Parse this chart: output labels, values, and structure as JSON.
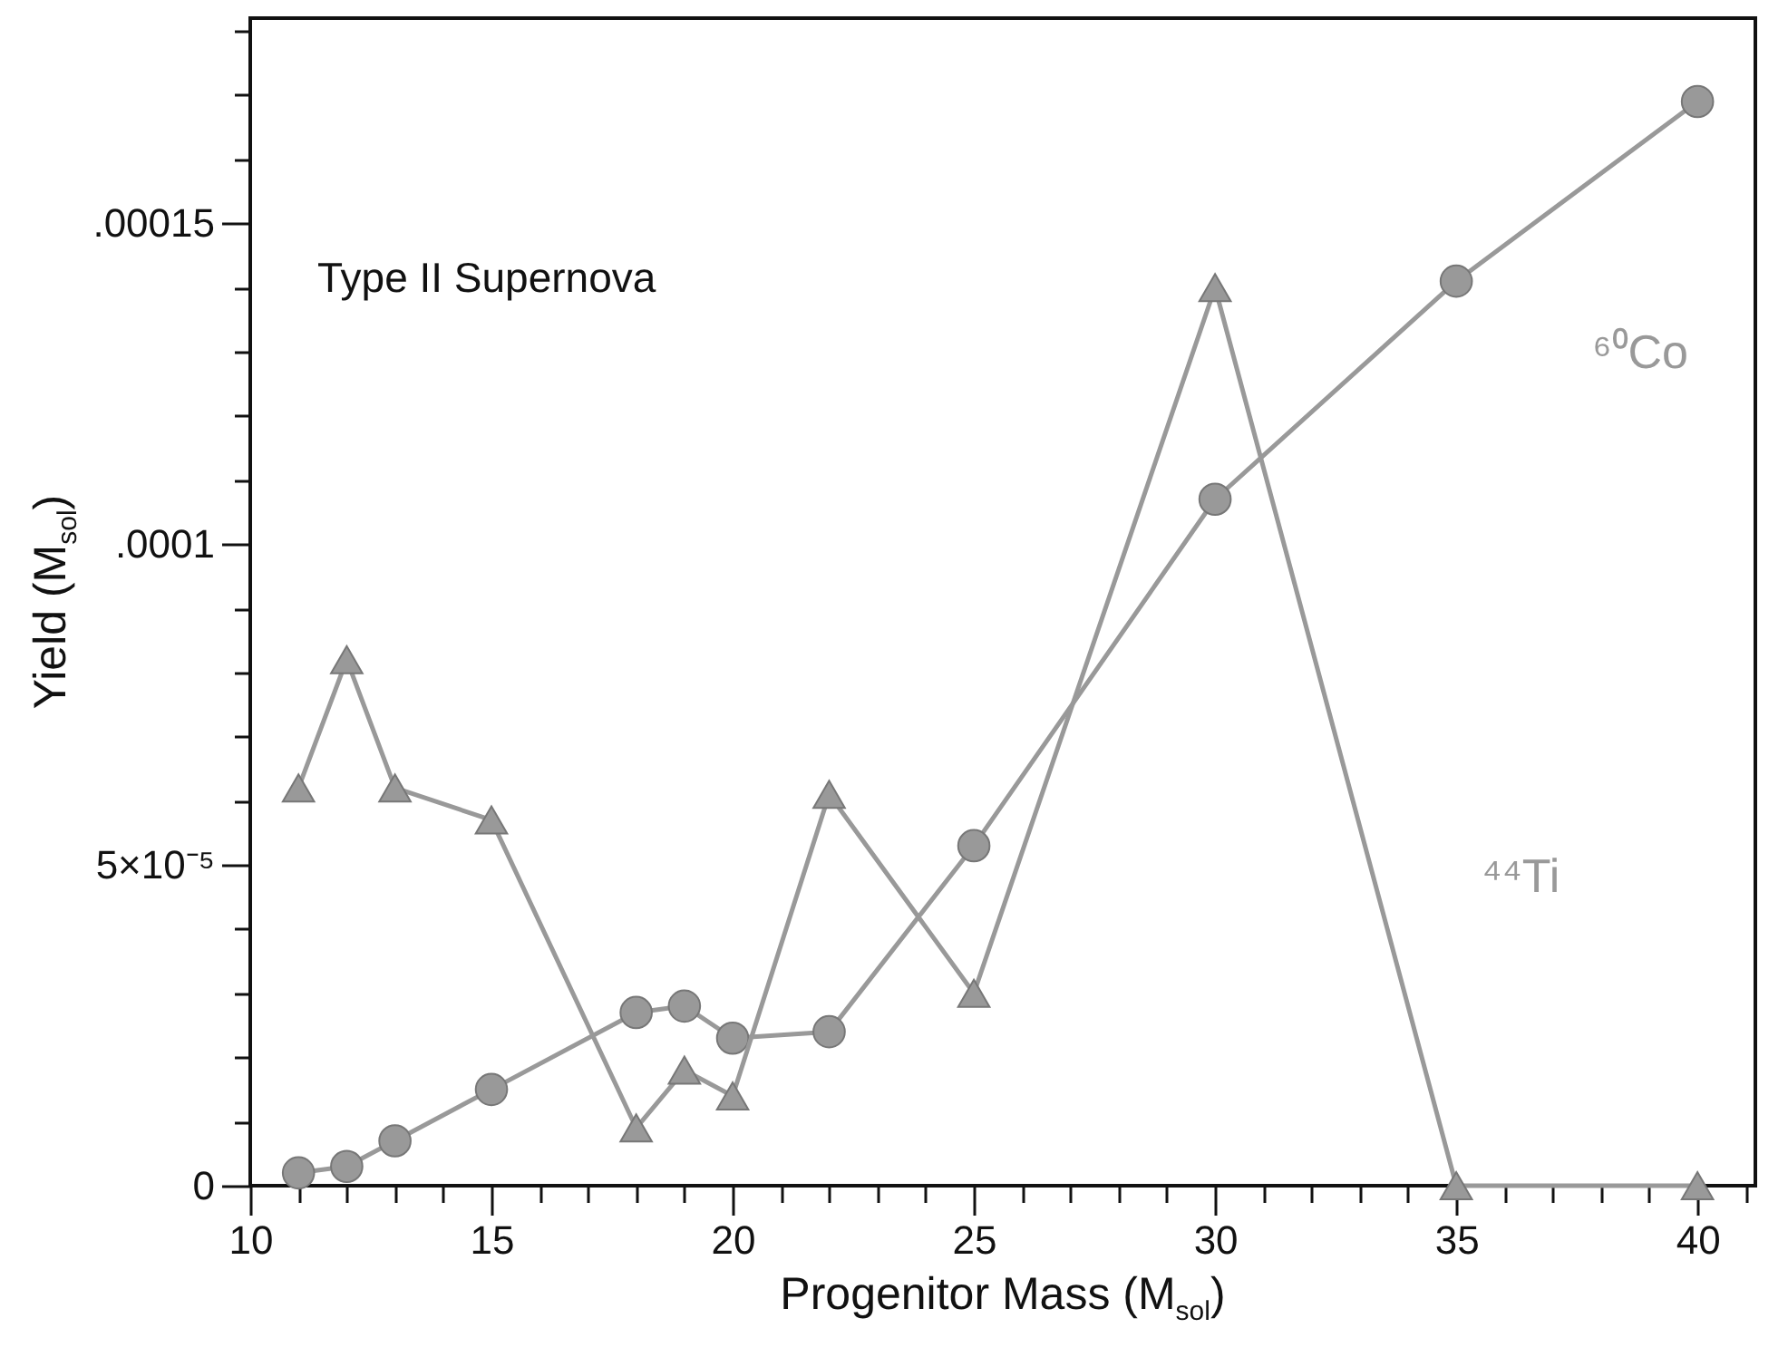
{
  "chart_data": {
    "type": "line",
    "title": "Type II Supernova",
    "xlabel": "Progenitor Mass (M$_{sol}$)",
    "ylabel": "Yield (M$_{sol}$)",
    "xlim": [
      10,
      41.2
    ],
    "ylim": [
      0,
      0.000182
    ],
    "xticks": [
      10,
      {
        "value": 11,
        "label": null
      },
      {
        "value": 12,
        "label": null
      },
      {
        "value": 13,
        "label": null
      },
      {
        "value": 14,
        "label": null
      },
      15,
      {
        "value": 16,
        "label": null
      },
      {
        "value": 17,
        "label": null
      },
      {
        "value": 18,
        "label": null
      },
      {
        "value": 19,
        "label": null
      },
      20,
      {
        "value": 21,
        "label": null
      },
      {
        "value": 22,
        "label": null
      },
      {
        "value": 23,
        "label": null
      },
      {
        "value": 24,
        "label": null
      },
      25,
      {
        "value": 26,
        "label": null
      },
      {
        "value": 27,
        "label": null
      },
      {
        "value": 28,
        "label": null
      },
      {
        "value": 29,
        "label": null
      },
      30,
      {
        "value": 31,
        "label": null
      },
      {
        "value": 32,
        "label": null
      },
      {
        "value": 33,
        "label": null
      },
      {
        "value": 34,
        "label": null
      },
      35,
      {
        "value": 36,
        "label": null
      },
      {
        "value": 37,
        "label": null
      },
      {
        "value": 38,
        "label": null
      },
      {
        "value": 39,
        "label": null
      },
      40,
      {
        "value": 41,
        "label": null
      }
    ],
    "yticks": [
      0,
      {
        "value": 1e-05,
        "label": null
      },
      {
        "value": 2e-05,
        "label": null
      },
      {
        "value": 3e-05,
        "label": null
      },
      {
        "value": 4e-05,
        "label": null
      },
      {
        "value": 5e-05,
        "label": "5×10⁻⁵"
      },
      {
        "value": 6e-05,
        "label": null
      },
      {
        "value": 7e-05,
        "label": null
      },
      {
        "value": 8e-05,
        "label": null
      },
      {
        "value": 9e-05,
        "label": null
      },
      {
        "value": 0.0001,
        "label": ".0001"
      },
      {
        "value": 0.00011,
        "label": null
      },
      {
        "value": 0.00012,
        "label": null
      },
      {
        "value": 0.00013,
        "label": null
      },
      {
        "value": 0.00014,
        "label": null
      },
      {
        "value": 0.00015,
        "label": ".00015"
      },
      {
        "value": 0.00016,
        "label": null
      },
      {
        "value": 0.00017,
        "label": null
      },
      {
        "value": 0.00018,
        "label": null
      }
    ],
    "x": [
      11,
      12,
      13,
      15,
      18,
      19,
      20,
      22,
      25,
      30,
      35,
      40
    ],
    "series": [
      {
        "name": "⁶⁰Co",
        "color": "#999999",
        "marker": "circle",
        "values": [
          2e-06,
          3e-06,
          7e-06,
          1.5e-05,
          2.7e-05,
          2.8e-05,
          2.3e-05,
          2.4e-05,
          5.3e-05,
          0.000107,
          0.000141,
          0.000169
        ]
      },
      {
        "name": "⁴⁴Ti",
        "color": "#999999",
        "marker": "triangle",
        "values": [
          6.2e-05,
          8.2e-05,
          6.2e-05,
          5.7e-05,
          9e-06,
          1.8e-05,
          1.4e-05,
          6.1e-05,
          3e-05,
          0.00014,
          0,
          0
        ]
      }
    ]
  }
}
